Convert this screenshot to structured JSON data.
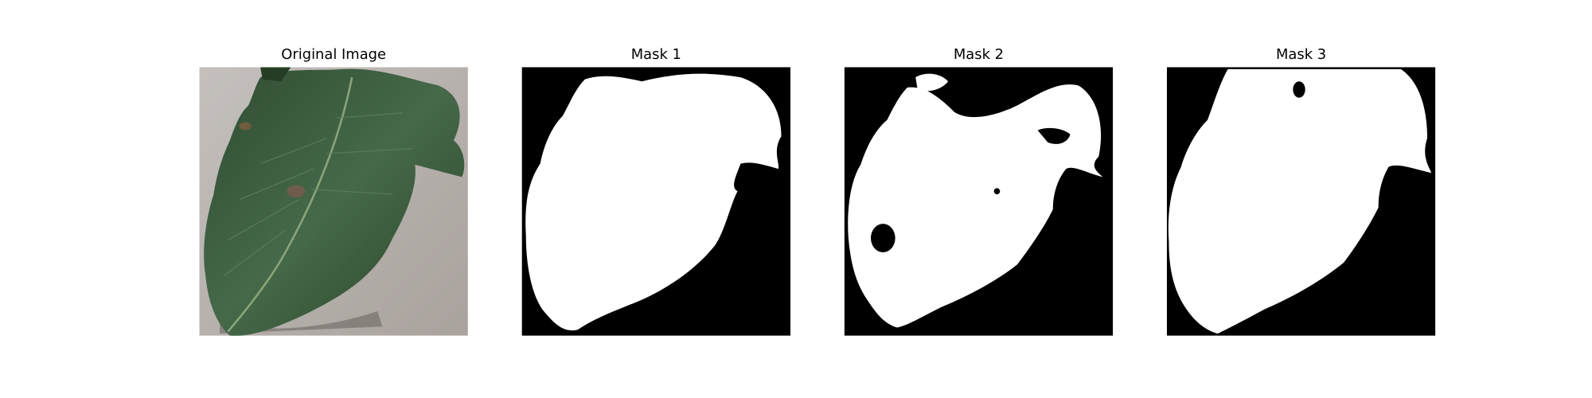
{
  "figure": {
    "panels": [
      {
        "title": "Original Image",
        "kind": "photo",
        "subject": "leaf-photo"
      },
      {
        "title": "Mask 1",
        "kind": "mask"
      },
      {
        "title": "Mask 2",
        "kind": "mask"
      },
      {
        "title": "Mask 3",
        "kind": "mask"
      }
    ]
  },
  "colors": {
    "background": "#ffffff",
    "mask_foreground": "#ffffff",
    "mask_background": "#000000",
    "leaf_green": "#37583d",
    "leaf_dark": "#22371f",
    "surface_gray": "#b7b2ae"
  }
}
